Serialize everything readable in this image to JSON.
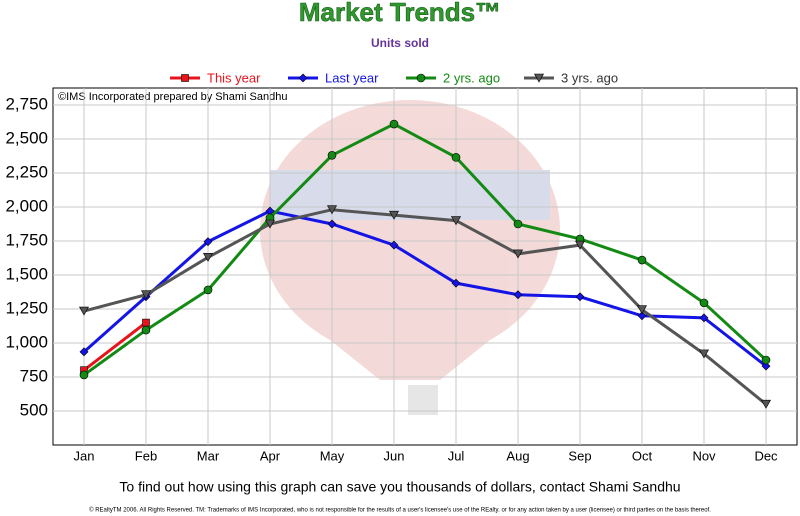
{
  "chart_data": {
    "type": "line",
    "title": "Market Trends™",
    "subtitle": "Units sold",
    "annotation": "©IMS Incorporated prepared by Shami Sandhu",
    "footer": "To find out how using this graph can save you thousands of dollars, contact Shami Sandhu",
    "fine_print": "© REaltyTM 2006. All Rights Reserved. TM: Trademarks of IMS Incorporated, who is not responsible for the results of a user's licensee's use of the REalty. or for any action taken by a user (licensee) or third parties on the basis thereof.",
    "categories": [
      "Jan",
      "Feb",
      "Mar",
      "Apr",
      "May",
      "Jun",
      "Jul",
      "Aug",
      "Sep",
      "Oct",
      "Nov",
      "Dec"
    ],
    "series": [
      {
        "name": "This year",
        "color": "#e8141c",
        "marker": "square",
        "values": [
          800,
          1150,
          null,
          null,
          null,
          null,
          null,
          null,
          null,
          null,
          null,
          null
        ]
      },
      {
        "name": "Last year",
        "color": "#1414e6",
        "marker": "diamond",
        "values": [
          935,
          1340,
          1745,
          1970,
          1875,
          1720,
          1440,
          1355,
          1340,
          1200,
          1185,
          830
        ]
      },
      {
        "name": "2 yrs. ago",
        "color": "#138a13",
        "marker": "circle",
        "values": [
          765,
          1095,
          1390,
          1920,
          2380,
          2610,
          2365,
          1875,
          1765,
          1610,
          1295,
          875
        ]
      },
      {
        "name": "3 yrs. ago",
        "color": "#555555",
        "marker": "triangle-down",
        "values": [
          1235,
          1355,
          1630,
          1875,
          1980,
          1940,
          1900,
          1655,
          1720,
          1245,
          920,
          550
        ]
      }
    ],
    "ylim": [
      250,
      2875
    ],
    "yticks": [
      500,
      750,
      {
        "value": 1000,
        "label": "1,000"
      },
      {
        "value": 1250,
        "label": "1,250"
      },
      {
        "value": 1500,
        "label": "1,500"
      },
      {
        "value": 1750,
        "label": "1,750"
      },
      {
        "value": 2000,
        "label": "2,000"
      },
      {
        "value": 2250,
        "label": "2,250"
      },
      {
        "value": 2500,
        "label": "2,500"
      },
      {
        "value": 2750,
        "label": "2,750"
      }
    ],
    "grid": true
  }
}
